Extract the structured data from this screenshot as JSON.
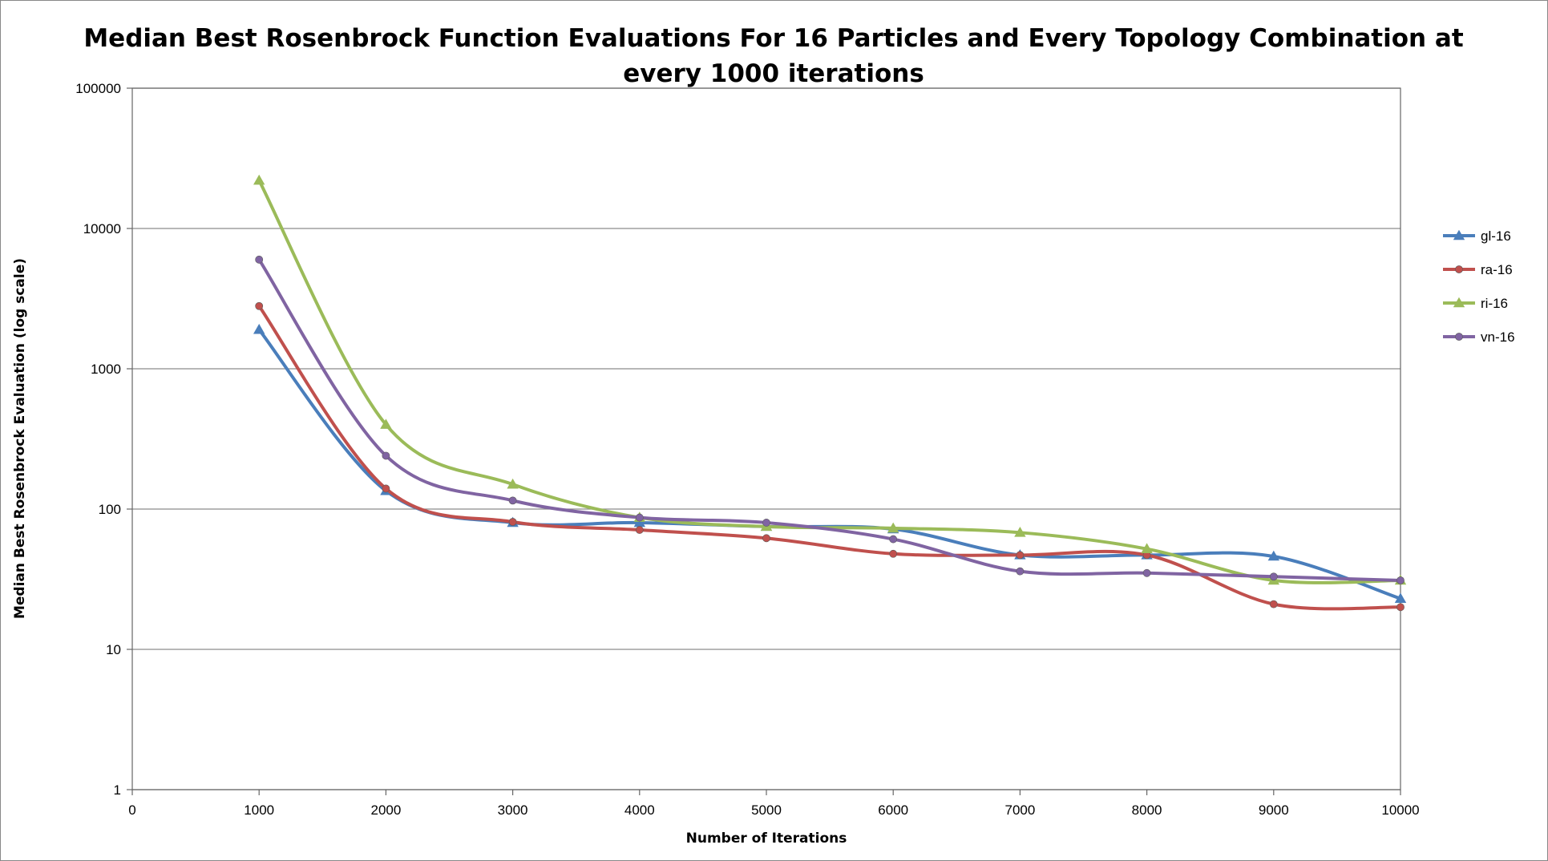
{
  "chart_data": {
    "type": "line",
    "title_lines": [
      "Median Best Rosenbrock Function Evaluations For 16 Particles and Every Topology Combination at",
      "every 1000 iterations"
    ],
    "xlabel": "Number of Iterations",
    "ylabel": "Median Best Rosenbrock Evaluation (log scale)",
    "x_scale": "linear",
    "y_scale": "log",
    "xlim": [
      0,
      10000
    ],
    "ylim": [
      1,
      100000
    ],
    "x_ticks": [
      "0",
      "1000",
      "2000",
      "3000",
      "4000",
      "5000",
      "6000",
      "7000",
      "8000",
      "9000",
      "10000"
    ],
    "y_ticks": [
      "1",
      "10",
      "100",
      "1000",
      "10000",
      "100000"
    ],
    "grid": "horizontal",
    "legend_position": "right",
    "x": [
      1000,
      2000,
      3000,
      4000,
      5000,
      6000,
      7000,
      8000,
      9000,
      10000
    ],
    "series": [
      {
        "name": "gl-16",
        "color": "#4a7ebb",
        "marker": "triangle",
        "values": [
          1900,
          135,
          80,
          80,
          75,
          72,
          47,
          47,
          46,
          23
        ]
      },
      {
        "name": "ra-16",
        "color": "#c0504d",
        "marker": "circle",
        "values": [
          2800,
          140,
          81,
          71,
          62,
          48,
          47,
          47,
          21,
          20
        ]
      },
      {
        "name": "ri-16",
        "color": "#9bbb59",
        "marker": "triangle",
        "values": [
          22000,
          400,
          150,
          87,
          75,
          73,
          68,
          52,
          31,
          31
        ]
      },
      {
        "name": "vn-16",
        "color": "#8064a2",
        "marker": "circle",
        "values": [
          6000,
          240,
          115,
          87,
          80,
          61,
          36,
          35,
          33,
          31
        ]
      }
    ]
  }
}
